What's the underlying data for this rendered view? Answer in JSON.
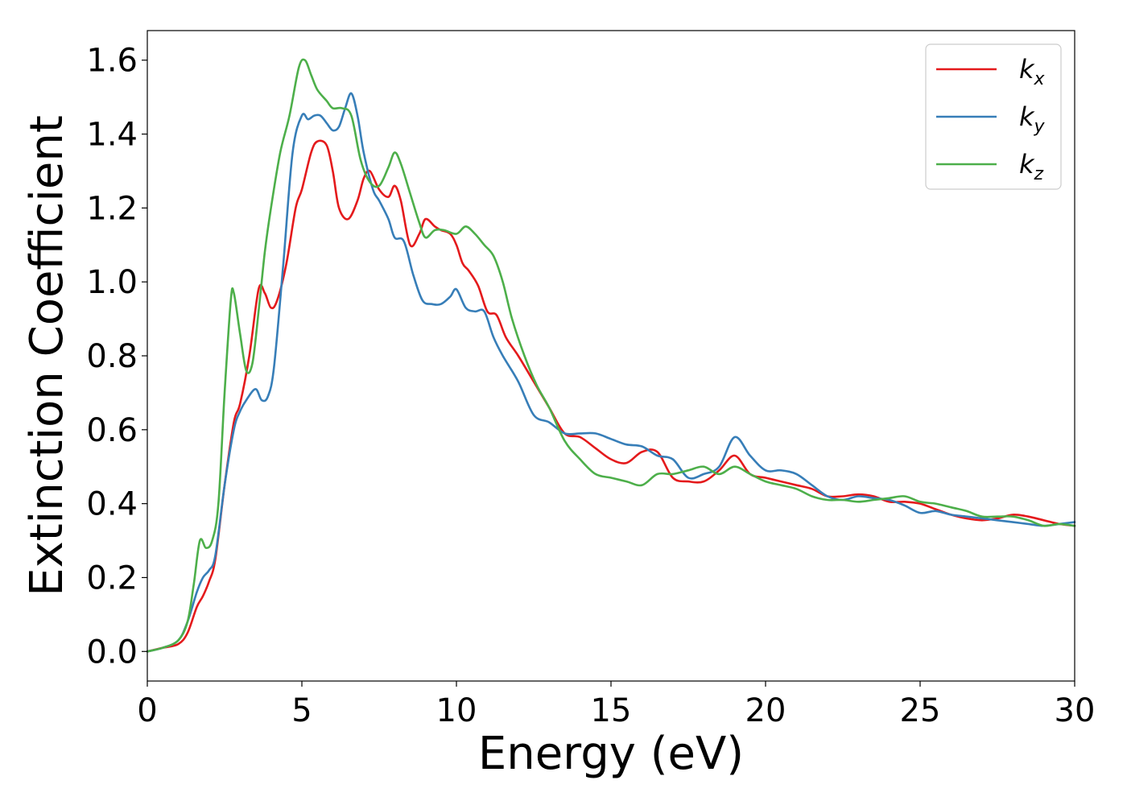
{
  "chart_data": {
    "type": "line",
    "title": "",
    "xlabel": "Energy (eV)",
    "ylabel": "Extinction Coefficient",
    "xlim": [
      0,
      30
    ],
    "ylim": [
      -0.08,
      1.68
    ],
    "xticks": [
      0,
      5,
      10,
      15,
      20,
      25,
      30
    ],
    "xtick_labels": [
      "0",
      "5",
      "10",
      "15",
      "20",
      "25",
      "30"
    ],
    "yticks": [
      0.0,
      0.2,
      0.4,
      0.6,
      0.8,
      1.0,
      1.2,
      1.4,
      1.6
    ],
    "ytick_labels": [
      "0.0",
      "0.2",
      "0.4",
      "0.6",
      "0.8",
      "1.0",
      "1.2",
      "1.4",
      "1.6"
    ],
    "grid": false,
    "legend_position": "top-right",
    "series": [
      {
        "name": "k",
        "subscript": "x",
        "color": "#e41a1c",
        "x": [
          0,
          0.5,
          1.0,
          1.3,
          1.6,
          1.8,
          2.0,
          2.2,
          2.5,
          2.8,
          3.0,
          3.3,
          3.6,
          3.8,
          4.0,
          4.2,
          4.5,
          4.8,
          5.0,
          5.3,
          5.5,
          5.8,
          6.0,
          6.2,
          6.5,
          6.8,
          7.0,
          7.2,
          7.5,
          7.8,
          8.0,
          8.2,
          8.5,
          8.8,
          9.0,
          9.3,
          9.5,
          9.8,
          10.0,
          10.2,
          10.4,
          10.7,
          11.0,
          11.3,
          11.6,
          12.0,
          12.5,
          13.0,
          13.5,
          14.0,
          14.5,
          15.0,
          15.5,
          16.0,
          16.5,
          17.0,
          17.5,
          18.0,
          18.5,
          19.0,
          19.5,
          20.0,
          20.5,
          21.0,
          21.5,
          22.0,
          22.5,
          23.0,
          23.5,
          24.0,
          24.5,
          25.0,
          25.5,
          26.0,
          26.5,
          27.0,
          27.5,
          28.0,
          28.5,
          29.0,
          29.5,
          30.0
        ],
        "y": [
          0.0,
          0.01,
          0.02,
          0.05,
          0.12,
          0.15,
          0.19,
          0.25,
          0.45,
          0.62,
          0.67,
          0.8,
          0.98,
          0.97,
          0.93,
          0.95,
          1.05,
          1.2,
          1.25,
          1.35,
          1.38,
          1.37,
          1.3,
          1.2,
          1.17,
          1.22,
          1.28,
          1.3,
          1.25,
          1.23,
          1.26,
          1.22,
          1.1,
          1.13,
          1.17,
          1.15,
          1.14,
          1.13,
          1.1,
          1.05,
          1.03,
          0.99,
          0.92,
          0.91,
          0.85,
          0.8,
          0.73,
          0.66,
          0.59,
          0.58,
          0.55,
          0.52,
          0.51,
          0.54,
          0.54,
          0.47,
          0.46,
          0.46,
          0.49,
          0.53,
          0.48,
          0.47,
          0.46,
          0.45,
          0.44,
          0.42,
          0.42,
          0.425,
          0.42,
          0.405,
          0.405,
          0.4,
          0.385,
          0.37,
          0.36,
          0.355,
          0.36,
          0.37,
          0.365,
          0.355,
          0.345,
          0.34
        ]
      },
      {
        "name": "k",
        "subscript": "y",
        "color": "#377eb8",
        "x": [
          0,
          0.5,
          1.0,
          1.3,
          1.6,
          1.8,
          2.0,
          2.2,
          2.5,
          2.8,
          3.0,
          3.2,
          3.5,
          3.7,
          3.9,
          4.1,
          4.4,
          4.7,
          5.0,
          5.2,
          5.4,
          5.6,
          5.8,
          6.0,
          6.2,
          6.4,
          6.6,
          6.8,
          7.0,
          7.3,
          7.5,
          7.8,
          8.0,
          8.3,
          8.6,
          8.9,
          9.2,
          9.5,
          9.8,
          10.0,
          10.3,
          10.6,
          10.9,
          11.2,
          11.5,
          12.0,
          12.5,
          13.0,
          13.5,
          14.0,
          14.5,
          15.0,
          15.5,
          16.0,
          16.5,
          17.0,
          17.5,
          18.0,
          18.5,
          19.0,
          19.5,
          20.0,
          20.5,
          21.0,
          21.5,
          22.0,
          22.5,
          23.0,
          23.5,
          24.0,
          24.5,
          25.0,
          25.5,
          26.0,
          26.5,
          27.0,
          27.5,
          28.0,
          28.5,
          29.0,
          29.5,
          30.0
        ],
        "y": [
          0.0,
          0.01,
          0.03,
          0.08,
          0.16,
          0.2,
          0.22,
          0.26,
          0.45,
          0.6,
          0.65,
          0.68,
          0.71,
          0.68,
          0.69,
          0.77,
          1.05,
          1.35,
          1.45,
          1.44,
          1.45,
          1.45,
          1.43,
          1.41,
          1.42,
          1.47,
          1.51,
          1.45,
          1.35,
          1.25,
          1.22,
          1.17,
          1.12,
          1.11,
          1.02,
          0.95,
          0.94,
          0.94,
          0.96,
          0.98,
          0.93,
          0.92,
          0.92,
          0.85,
          0.8,
          0.73,
          0.64,
          0.62,
          0.59,
          0.59,
          0.59,
          0.575,
          0.56,
          0.555,
          0.53,
          0.52,
          0.47,
          0.48,
          0.5,
          0.58,
          0.53,
          0.49,
          0.49,
          0.48,
          0.45,
          0.42,
          0.41,
          0.42,
          0.415,
          0.41,
          0.395,
          0.375,
          0.38,
          0.37,
          0.365,
          0.36,
          0.355,
          0.35,
          0.345,
          0.34,
          0.345,
          0.35
        ]
      },
      {
        "name": "k",
        "subscript": "z",
        "color": "#4daf4a",
        "x": [
          0,
          0.5,
          1.0,
          1.3,
          1.5,
          1.7,
          1.9,
          2.1,
          2.3,
          2.5,
          2.7,
          2.8,
          3.0,
          3.2,
          3.4,
          3.6,
          3.8,
          4.0,
          4.3,
          4.6,
          4.9,
          5.1,
          5.3,
          5.5,
          5.8,
          6.0,
          6.3,
          6.6,
          6.9,
          7.2,
          7.5,
          7.8,
          8.0,
          8.2,
          8.5,
          8.8,
          9.0,
          9.3,
          9.6,
          10.0,
          10.3,
          10.6,
          10.9,
          11.2,
          11.5,
          11.8,
          12.2,
          12.6,
          13.0,
          13.5,
          14.0,
          14.5,
          15.0,
          15.5,
          16.0,
          16.5,
          17.0,
          17.5,
          18.0,
          18.5,
          19.0,
          19.5,
          20.0,
          20.5,
          21.0,
          21.5,
          22.0,
          22.5,
          23.0,
          23.5,
          24.0,
          24.5,
          25.0,
          25.5,
          26.0,
          26.5,
          27.0,
          27.5,
          28.0,
          28.5,
          29.0,
          29.5,
          30.0
        ],
        "y": [
          0.0,
          0.01,
          0.03,
          0.08,
          0.18,
          0.3,
          0.28,
          0.3,
          0.4,
          0.7,
          0.95,
          0.97,
          0.86,
          0.76,
          0.78,
          0.92,
          1.08,
          1.2,
          1.35,
          1.45,
          1.58,
          1.6,
          1.56,
          1.52,
          1.49,
          1.47,
          1.47,
          1.45,
          1.33,
          1.27,
          1.26,
          1.31,
          1.35,
          1.32,
          1.24,
          1.16,
          1.12,
          1.14,
          1.14,
          1.13,
          1.15,
          1.13,
          1.1,
          1.07,
          1.0,
          0.9,
          0.8,
          0.72,
          0.66,
          0.57,
          0.52,
          0.48,
          0.47,
          0.46,
          0.45,
          0.48,
          0.48,
          0.49,
          0.5,
          0.48,
          0.5,
          0.48,
          0.46,
          0.45,
          0.44,
          0.42,
          0.41,
          0.41,
          0.405,
          0.41,
          0.415,
          0.42,
          0.405,
          0.4,
          0.39,
          0.38,
          0.365,
          0.365,
          0.365,
          0.355,
          0.34,
          0.345,
          0.34
        ]
      }
    ]
  }
}
